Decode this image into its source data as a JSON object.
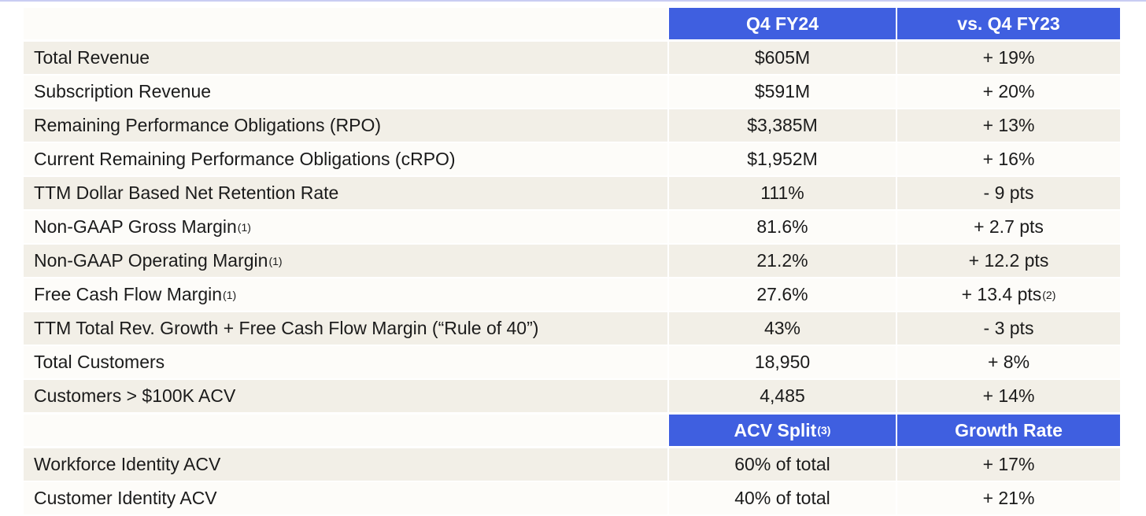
{
  "sections": [
    {
      "header": [
        {
          "text": "Q4 FY24"
        },
        {
          "text": "vs. Q4 FY23"
        }
      ],
      "rows": [
        [
          {
            "text": "Total Revenue"
          },
          {
            "text": "$605M"
          },
          {
            "text": "+ 19%"
          }
        ],
        [
          {
            "text": "Subscription Revenue"
          },
          {
            "text": "$591M"
          },
          {
            "text": "+ 20%"
          }
        ],
        [
          {
            "text": "Remaining Performance Obligations (RPO)"
          },
          {
            "text": "$3,385M"
          },
          {
            "text": "+ 13%"
          }
        ],
        [
          {
            "text": "Current Remaining Performance Obligations (cRPO)"
          },
          {
            "text": "$1,952M"
          },
          {
            "text": "+ 16%"
          }
        ],
        [
          {
            "text": "TTM Dollar Based Net Retention Rate"
          },
          {
            "text": "111%"
          },
          {
            "text": "- 9 pts"
          }
        ],
        [
          {
            "text": "Non-GAAP Gross Margin",
            "note": "(1)"
          },
          {
            "text": "81.6%"
          },
          {
            "text": "+ 2.7 pts"
          }
        ],
        [
          {
            "text": "Non-GAAP Operating Margin",
            "note": "(1)"
          },
          {
            "text": "21.2%"
          },
          {
            "text": "+ 12.2 pts"
          }
        ],
        [
          {
            "text": "Free Cash Flow Margin",
            "note": "(1)"
          },
          {
            "text": "27.6%"
          },
          {
            "text": "+ 13.4 pts",
            "note": "(2)"
          }
        ],
        [
          {
            "text": "TTM Total Rev. Growth + Free Cash Flow Margin (“Rule of 40”)"
          },
          {
            "text": "43%"
          },
          {
            "text": "- 3 pts"
          }
        ],
        [
          {
            "text": "Total Customers"
          },
          {
            "text": "18,950"
          },
          {
            "text": "+ 8%"
          }
        ],
        [
          {
            "text": "Customers > $100K ACV"
          },
          {
            "text": "4,485"
          },
          {
            "text": "+ 14%"
          }
        ]
      ]
    },
    {
      "header": [
        {
          "text": "ACV Split",
          "note": "(3)"
        },
        {
          "text": "Growth Rate"
        }
      ],
      "rows": [
        [
          {
            "text": "Workforce Identity ACV"
          },
          {
            "text": "60% of total"
          },
          {
            "text": "+ 17%"
          }
        ],
        [
          {
            "text": "Customer Identity ACV"
          },
          {
            "text": "40% of total"
          },
          {
            "text": "+ 21%"
          }
        ]
      ]
    }
  ]
}
